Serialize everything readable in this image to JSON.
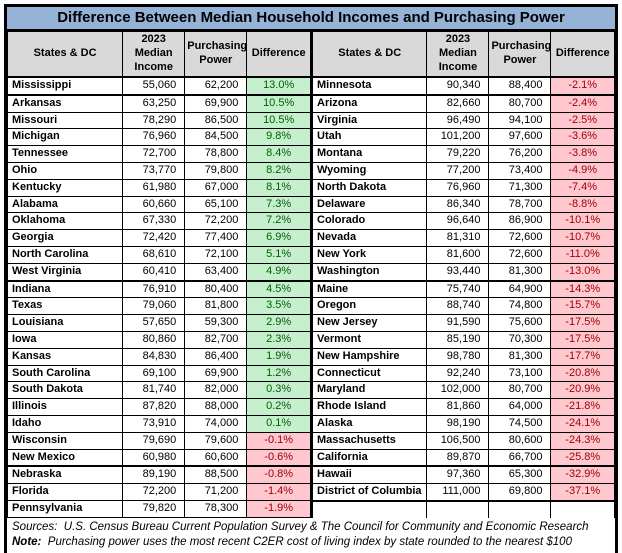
{
  "title": "Difference Between Median Household Incomes and Purchasing Power",
  "columns": [
    "States & DC",
    "2023 Median Income",
    "Purchasing Power",
    "Difference"
  ],
  "left_rows": [
    {
      "state": "Mississippi",
      "income": "55,060",
      "power": "62,200",
      "diff": "13.0%"
    },
    {
      "state": "Arkansas",
      "income": "63,250",
      "power": "69,900",
      "diff": "10.5%"
    },
    {
      "state": "Missouri",
      "income": "78,290",
      "power": "86,500",
      "diff": "10.5%"
    },
    {
      "state": "Michigan",
      "income": "76,960",
      "power": "84,500",
      "diff": "9.8%"
    },
    {
      "state": "Tennessee",
      "income": "72,700",
      "power": "78,800",
      "diff": "8.4%"
    },
    {
      "state": "Ohio",
      "income": "73,770",
      "power": "79,800",
      "diff": "8.2%"
    },
    {
      "state": "Kentucky",
      "income": "61,980",
      "power": "67,000",
      "diff": "8.1%"
    },
    {
      "state": "Alabama",
      "income": "60,660",
      "power": "65,100",
      "diff": "7.3%"
    },
    {
      "state": "Oklahoma",
      "income": "67,330",
      "power": "72,200",
      "diff": "7.2%"
    },
    {
      "state": "Georgia",
      "income": "72,420",
      "power": "77,400",
      "diff": "6.9%"
    },
    {
      "state": "North Carolina",
      "income": "68,610",
      "power": "72,100",
      "diff": "5.1%"
    },
    {
      "state": "West Virginia",
      "income": "60,410",
      "power": "63,400",
      "diff": "4.9%"
    },
    {
      "state": "Indiana",
      "income": "76,910",
      "power": "80,400",
      "diff": "4.5%"
    },
    {
      "state": "Texas",
      "income": "79,060",
      "power": "81,800",
      "diff": "3.5%"
    },
    {
      "state": "Louisiana",
      "income": "57,650",
      "power": "59,300",
      "diff": "2.9%"
    },
    {
      "state": "Iowa",
      "income": "80,860",
      "power": "82,700",
      "diff": "2.3%"
    },
    {
      "state": "Kansas",
      "income": "84,830",
      "power": "86,400",
      "diff": "1.9%"
    },
    {
      "state": "South Carolina",
      "income": "69,100",
      "power": "69,900",
      "diff": "1.2%"
    },
    {
      "state": "South Dakota",
      "income": "81,740",
      "power": "82,000",
      "diff": "0.3%"
    },
    {
      "state": "Illinois",
      "income": "87,820",
      "power": "88,000",
      "diff": "0.2%"
    },
    {
      "state": "Idaho",
      "income": "73,910",
      "power": "74,000",
      "diff": "0.1%"
    },
    {
      "state": "Wisconsin",
      "income": "79,690",
      "power": "79,600",
      "diff": "-0.1%"
    },
    {
      "state": "New Mexico",
      "income": "60,980",
      "power": "60,600",
      "diff": "-0.6%"
    },
    {
      "state": "Nebraska",
      "income": "89,190",
      "power": "88,500",
      "diff": "-0.8%"
    },
    {
      "state": "Florida",
      "income": "72,200",
      "power": "71,200",
      "diff": "-1.4%"
    },
    {
      "state": "Pennsylvania",
      "income": "79,820",
      "power": "78,300",
      "diff": "-1.9%"
    }
  ],
  "right_rows": [
    {
      "state": "Minnesota",
      "income": "90,340",
      "power": "88,400",
      "diff": "-2.1%"
    },
    {
      "state": "Arizona",
      "income": "82,660",
      "power": "80,700",
      "diff": "-2.4%"
    },
    {
      "state": "Virginia",
      "income": "96,490",
      "power": "94,100",
      "diff": "-2.5%"
    },
    {
      "state": "Utah",
      "income": "101,200",
      "power": "97,600",
      "diff": "-3.6%"
    },
    {
      "state": "Montana",
      "income": "79,220",
      "power": "76,200",
      "diff": "-3.8%"
    },
    {
      "state": "Wyoming",
      "income": "77,200",
      "power": "73,400",
      "diff": "-4.9%"
    },
    {
      "state": "North Dakota",
      "income": "76,960",
      "power": "71,300",
      "diff": "-7.4%"
    },
    {
      "state": "Delaware",
      "income": "86,340",
      "power": "78,700",
      "diff": "-8.8%"
    },
    {
      "state": "Colorado",
      "income": "96,640",
      "power": "86,900",
      "diff": "-10.1%"
    },
    {
      "state": "Nevada",
      "income": "81,310",
      "power": "72,600",
      "diff": "-10.7%"
    },
    {
      "state": "New York",
      "income": "81,600",
      "power": "72,600",
      "diff": "-11.0%"
    },
    {
      "state": "Washington",
      "income": "93,440",
      "power": "81,300",
      "diff": "-13.0%"
    },
    {
      "state": "Maine",
      "income": "75,740",
      "power": "64,900",
      "diff": "-14.3%"
    },
    {
      "state": "Oregon",
      "income": "88,740",
      "power": "74,800",
      "diff": "-15.7%"
    },
    {
      "state": "New Jersey",
      "income": "91,590",
      "power": "75,600",
      "diff": "-17.5%"
    },
    {
      "state": "Vermont",
      "income": "85,190",
      "power": "70,300",
      "diff": "-17.5%"
    },
    {
      "state": "New Hampshire",
      "income": "98,780",
      "power": "81,300",
      "diff": "-17.7%"
    },
    {
      "state": "Connecticut",
      "income": "92,240",
      "power": "73,100",
      "diff": "-20.8%"
    },
    {
      "state": "Maryland",
      "income": "102,000",
      "power": "80,700",
      "diff": "-20.9%"
    },
    {
      "state": "Rhode Island",
      "income": "81,860",
      "power": "64,000",
      "diff": "-21.8%"
    },
    {
      "state": "Alaska",
      "income": "98,190",
      "power": "74,500",
      "diff": "-24.1%"
    },
    {
      "state": "Massachusetts",
      "income": "106,500",
      "power": "80,600",
      "diff": "-24.3%"
    },
    {
      "state": "California",
      "income": "89,870",
      "power": "66,700",
      "diff": "-25.8%"
    },
    {
      "state": "Hawaii",
      "income": "97,360",
      "power": "65,300",
      "diff": "-32.9%"
    },
    {
      "state": "District of Columbia",
      "income": "111,000",
      "power": "69,800",
      "diff": "-37.1%"
    }
  ],
  "footer": {
    "sources_label": "Sources:",
    "sources_text": "U.S. Census Bureau Current Population Survey & The Council for Community and Economic Research",
    "note_label": "Note:",
    "note_text": "Purchasing power uses the most recent C2ER cost of living index by state rounded to the nearest $100"
  },
  "colors": {
    "title_bg": "#95B3D7",
    "header_bg": "#D9D9D9",
    "positive_bg": "#C6EFCE",
    "positive_text": "#006100",
    "negative_bg": "#FFC7CE",
    "negative_text": "#9C0006"
  }
}
